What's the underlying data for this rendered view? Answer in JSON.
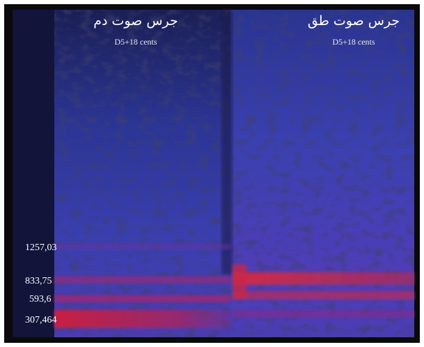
{
  "panels": [
    {
      "title": "جرس صوت دم",
      "pitch": "D5+18 cents"
    },
    {
      "title": "جرس صوت طق",
      "pitch": "D5+18 cents"
    }
  ],
  "frequency_labels": [
    "1257,03",
    "833,75",
    "593,6",
    "307,464"
  ]
}
